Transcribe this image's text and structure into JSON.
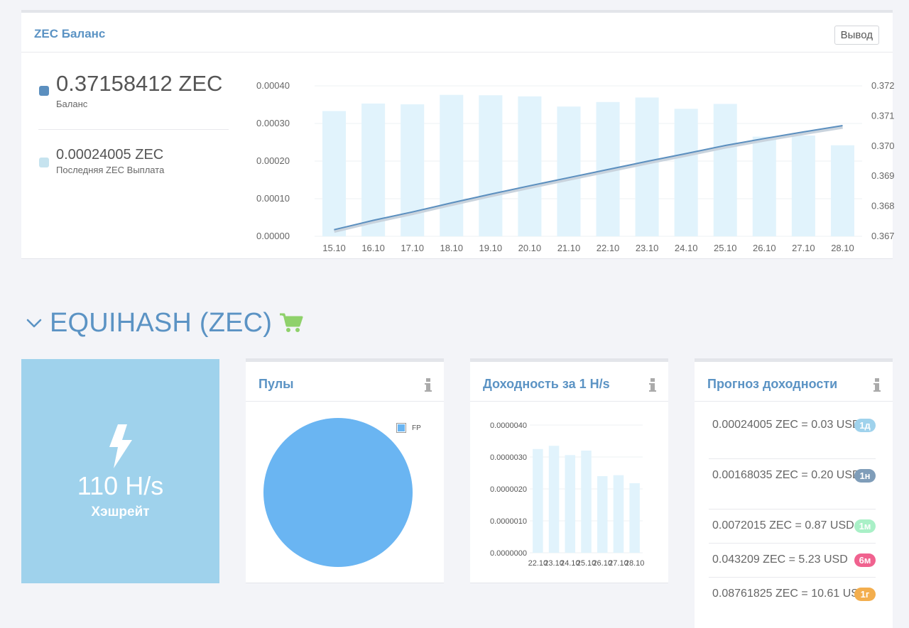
{
  "balance_panel": {
    "title": "ZEC Баланс",
    "withdraw_label": "Вывод",
    "balance_value": "0.37158412 ZEC",
    "balance_label": "Баланс",
    "last_payout_value": "0.00024005 ZEC",
    "last_payout_label": "Последняя ZEC Выплата",
    "colors": {
      "balance": "#5b8fbf",
      "payout": "#c6e3ef"
    }
  },
  "section": {
    "title": "EQUIHASH (ZEC)",
    "chevron_icon": "chevron-down-icon",
    "cart_icon": "shopping-cart-icon",
    "cart_color": "#8fd16b"
  },
  "hashrate": {
    "value": "110 H/s",
    "label": "Хэшрейт",
    "icon": "lightning-bolt-icon",
    "color": "#9fd2ec"
  },
  "pools": {
    "title": "Пулы",
    "legend": "FP",
    "slice_color": "#6ab5f2"
  },
  "yield": {
    "title": "Доходность за 1 H/s"
  },
  "forecast": {
    "title": "Прогноз доходности",
    "rows": [
      {
        "text": "0.00024005 ZEC = 0.03 USD",
        "badge": "1д",
        "color": "#9fd2ec"
      },
      {
        "text": "0.00168035 ZEC = 0.20 USD",
        "badge": "1н",
        "color": "#7f9db9"
      },
      {
        "text": "0.0072015 ZEC = 0.87 USD",
        "badge": "1м",
        "color": "#a9f0c7"
      },
      {
        "text": "0.043209 ZEC = 5.23 USD",
        "badge": "6м",
        "color": "#f0628f"
      },
      {
        "text": "0.08761825 ZEC = 10.61 USD",
        "badge": "1г",
        "color": "#f3ae4e"
      }
    ]
  },
  "chart_data": [
    {
      "type": "bar",
      "categories": [
        "15.10",
        "16.10",
        "17.10",
        "18.10",
        "19.10",
        "20.10",
        "21.10",
        "22.10",
        "23.10",
        "24.10",
        "25.10",
        "26.10",
        "27.10",
        "28.10"
      ],
      "series": [
        {
          "values": [
            0.000333,
            0.000353,
            0.000351,
            0.000376,
            0.000375,
            0.000372,
            0.000345,
            0.000357,
            0.000369,
            0.000339,
            0.000352,
            0.000265,
            0.000268,
            0.000242
          ],
          "axis": "left",
          "color": "#e1f3fc"
        },
        {
          "values": [
            0.36722,
            0.36753,
            0.36781,
            0.36811,
            0.3684,
            0.36868,
            0.36895,
            0.36922,
            0.36949,
            0.36975,
            0.37002,
            0.37025,
            0.37047,
            0.37068
          ],
          "axis": "right",
          "render": "line",
          "color": "#5b8fbf"
        }
      ],
      "y_ticks_left": [
        "0.00000",
        "0.00010",
        "0.00020",
        "0.00030",
        "0.00040"
      ],
      "y_ticks_right": [
        "0.367",
        "0.368",
        "0.369",
        "0.370",
        "0.371",
        "0.372"
      ],
      "ylim_left": [
        0,
        0.0004
      ],
      "ylim_right": [
        0.367,
        0.372
      ],
      "grid": true
    },
    {
      "type": "pie",
      "categories": [
        "FP"
      ],
      "values": [
        100
      ],
      "legend": "top-right"
    },
    {
      "type": "bar",
      "categories": [
        "22.10",
        "23.10",
        "24.10",
        "25.10",
        "26.10",
        "27.10",
        "28.10"
      ],
      "values": [
        3.25e-06,
        3.35e-06,
        3.06e-06,
        3.2e-06,
        2.4e-06,
        2.43e-06,
        2.18e-06
      ],
      "y_ticks": [
        "0.0000000",
        "0.0000010",
        "0.0000020",
        "0.0000030",
        "0.0000040"
      ],
      "ylim": [
        0,
        4e-06
      ],
      "grid": true,
      "color": "#e1f3fc"
    }
  ]
}
